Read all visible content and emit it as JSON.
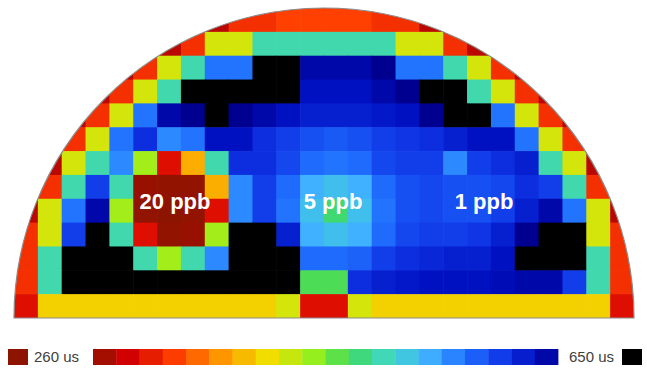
{
  "chart_data": {
    "type": "heatmap",
    "cells": [
      [
        null,
        null,
        null,
        null,
        null,
        null,
        null,
        null,
        280,
        320,
        320,
        330,
        330,
        330,
        330,
        320,
        320,
        280,
        null,
        null,
        null,
        null,
        null,
        null,
        null,
        null
      ],
      [
        null,
        null,
        null,
        null,
        null,
        null,
        280,
        320,
        420,
        420,
        500,
        500,
        500,
        500,
        500,
        500,
        420,
        420,
        320,
        280,
        null,
        null,
        null,
        null,
        null,
        null
      ],
      [
        null,
        null,
        null,
        null,
        280,
        320,
        420,
        500,
        570,
        570,
        680,
        660,
        640,
        640,
        640,
        650,
        570,
        570,
        500,
        420,
        320,
        280,
        null,
        null,
        null,
        null
      ],
      [
        null,
        null,
        null,
        280,
        320,
        420,
        500,
        660,
        680,
        680,
        680,
        660,
        630,
        630,
        630,
        640,
        650,
        680,
        680,
        500,
        420,
        320,
        280,
        null,
        null,
        null
      ],
      [
        null,
        null,
        280,
        320,
        420,
        570,
        640,
        650,
        660,
        650,
        640,
        630,
        620,
        620,
        620,
        625,
        630,
        650,
        670,
        680,
        570,
        420,
        320,
        280,
        null,
        null
      ],
      [
        null,
        null,
        320,
        420,
        570,
        610,
        560,
        570,
        630,
        630,
        610,
        600,
        590,
        585,
        590,
        600,
        605,
        610,
        620,
        630,
        630,
        570,
        420,
        320,
        null,
        null
      ],
      [
        null,
        280,
        420,
        500,
        560,
        440,
        300,
        380,
        500,
        610,
        610,
        595,
        575,
        570,
        575,
        595,
        600,
        600,
        560,
        600,
        610,
        620,
        500,
        420,
        280,
        null
      ],
      [
        null,
        320,
        500,
        600,
        500,
        265,
        262,
        262,
        380,
        560,
        600,
        575,
        540,
        530,
        540,
        575,
        590,
        595,
        590,
        590,
        595,
        610,
        600,
        500,
        320,
        null
      ],
      [
        280,
        420,
        570,
        640,
        440,
        262,
        260,
        262,
        300,
        560,
        600,
        570,
        530,
        480,
        530,
        570,
        590,
        595,
        590,
        590,
        600,
        620,
        640,
        570,
        420,
        280
      ],
      [
        320,
        420,
        600,
        680,
        500,
        300,
        262,
        265,
        440,
        660,
        670,
        620,
        540,
        530,
        540,
        575,
        595,
        600,
        600,
        605,
        620,
        650,
        680,
        660,
        420,
        320
      ],
      [
        320,
        500,
        660,
        680,
        660,
        500,
        440,
        500,
        560,
        670,
        680,
        660,
        575,
        575,
        580,
        600,
        610,
        615,
        620,
        620,
        630,
        660,
        680,
        670,
        500,
        320
      ],
      [
        320,
        500,
        660,
        680,
        680,
        680,
        680,
        680,
        670,
        680,
        680,
        660,
        470,
        470,
        610,
        620,
        625,
        630,
        630,
        630,
        635,
        640,
        640,
        600,
        500,
        320
      ],
      [
        300,
        400,
        400,
        400,
        400,
        400,
        400,
        400,
        400,
        400,
        400,
        420,
        300,
        300,
        420,
        400,
        400,
        400,
        400,
        400,
        400,
        400,
        400,
        400,
        400,
        300
      ]
    ],
    "colorbar": {
      "range": [
        260,
        650
      ],
      "ticks": [
        {
          "value": 260,
          "label": "260 us"
        },
        {
          "value": 650,
          "label": "650 us"
        }
      ]
    },
    "annotations": [
      "20 ppb",
      "5 ppb",
      "1 ppb"
    ]
  }
}
